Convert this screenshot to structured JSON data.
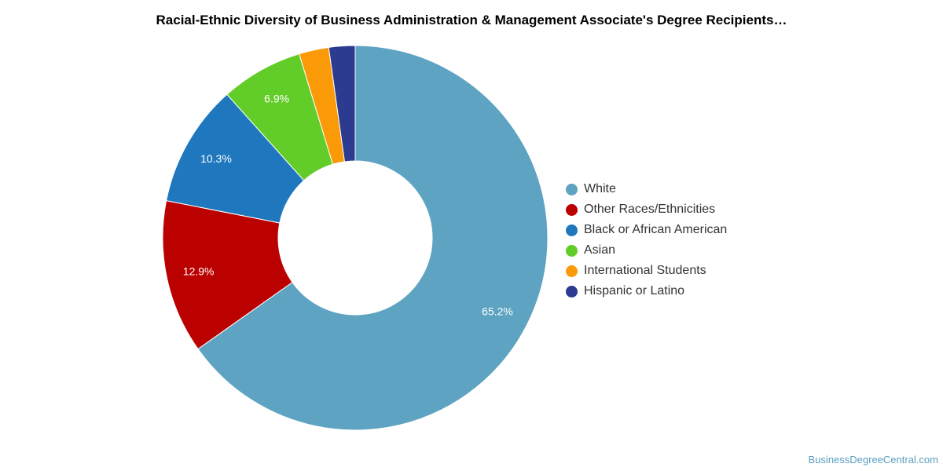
{
  "chart_data": {
    "type": "pie",
    "donut": true,
    "title": "Racial-Ethnic Diversity of Business Administration & Management Associate's Degree Recipients…",
    "legend_position": "right",
    "slices": [
      {
        "name": "White",
        "value": 65.2,
        "label": "65.2%",
        "color": "#5ea3c1"
      },
      {
        "name": "Other Races/Ethnicities",
        "value": 12.9,
        "label": "12.9%",
        "color": "#bb0000"
      },
      {
        "name": "Black or African American",
        "value": 10.3,
        "label": "10.3%",
        "color": "#1f77bd"
      },
      {
        "name": "Asian",
        "value": 6.9,
        "label": "6.9%",
        "color": "#62cd28"
      },
      {
        "name": "International Students",
        "value": 2.5,
        "label": "",
        "color": "#fb9a08"
      },
      {
        "name": "Hispanic or Latino",
        "value": 2.2,
        "label": "",
        "color": "#2c3a8f"
      }
    ]
  },
  "watermark": "BusinessDegreeCentral.com"
}
